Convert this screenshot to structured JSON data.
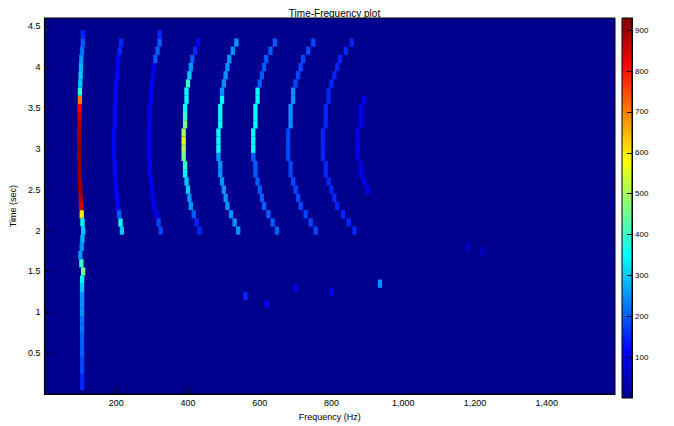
{
  "chart_data": {
    "type": "spectrogram",
    "title": "Time-Frequency plot",
    "x_label": "Frequency (Hz)",
    "y_label": "Time (sec)",
    "xlim": [
      0,
      1590
    ],
    "xticks": [
      200,
      400,
      600,
      800,
      1000,
      1200,
      1400
    ],
    "ylim": [
      0,
      4.6
    ],
    "yticks": [
      0.5,
      1,
      1.5,
      2,
      2.5,
      3,
      3.5,
      4,
      4.5
    ],
    "grid": false,
    "cell_width": 12,
    "cell_height": 0.1,
    "color_range": [
      0,
      930
    ],
    "color_ticks": [
      100,
      200,
      300,
      400,
      500,
      600,
      700,
      800,
      900
    ],
    "cells": [
      [
        105,
        0.1,
        150
      ],
      [
        105,
        0.2,
        150
      ],
      [
        105,
        0.3,
        180
      ],
      [
        105,
        0.4,
        180
      ],
      [
        105,
        0.5,
        200
      ],
      [
        105,
        0.6,
        200
      ],
      [
        105,
        0.7,
        200
      ],
      [
        105,
        0.8,
        220
      ],
      [
        105,
        0.9,
        220
      ],
      [
        105,
        1.0,
        250
      ],
      [
        105,
        1.1,
        250
      ],
      [
        105,
        1.2,
        250
      ],
      [
        105,
        1.3,
        300
      ],
      [
        105,
        1.4,
        350
      ],
      [
        108,
        1.5,
        450
      ],
      [
        103,
        1.6,
        400
      ],
      [
        100,
        1.7,
        250
      ],
      [
        104,
        1.8,
        250
      ],
      [
        106,
        1.9,
        280
      ],
      [
        108,
        2.0,
        300
      ],
      [
        106,
        2.1,
        350
      ],
      [
        104,
        2.2,
        600
      ],
      [
        102,
        2.3,
        850
      ],
      [
        101,
        2.4,
        880
      ],
      [
        100,
        2.5,
        900
      ],
      [
        99,
        2.6,
        900
      ],
      [
        98,
        2.7,
        910
      ],
      [
        98,
        2.8,
        920
      ],
      [
        97,
        2.9,
        920
      ],
      [
        97,
        3.0,
        920
      ],
      [
        97,
        3.1,
        910
      ],
      [
        97,
        3.2,
        900
      ],
      [
        98,
        3.3,
        880
      ],
      [
        98,
        3.4,
        860
      ],
      [
        98,
        3.5,
        820
      ],
      [
        99,
        3.6,
        700
      ],
      [
        99,
        3.7,
        400
      ],
      [
        100,
        3.8,
        300
      ],
      [
        101,
        3.9,
        300
      ],
      [
        102,
        4.0,
        280
      ],
      [
        103,
        4.1,
        250
      ],
      [
        105,
        4.2,
        220
      ],
      [
        107,
        4.3,
        200
      ],
      [
        107,
        4.4,
        150
      ],
      [
        216,
        2.0,
        300
      ],
      [
        212,
        2.1,
        350
      ],
      [
        208,
        2.2,
        200
      ],
      [
        204,
        2.3,
        120
      ],
      [
        202,
        2.4,
        120
      ],
      [
        200,
        2.5,
        120
      ],
      [
        198,
        2.6,
        120
      ],
      [
        196,
        2.7,
        120
      ],
      [
        196,
        2.8,
        120
      ],
      [
        194,
        2.9,
        120
      ],
      [
        194,
        3.0,
        120
      ],
      [
        194,
        3.1,
        120
      ],
      [
        194,
        3.2,
        120
      ],
      [
        196,
        3.3,
        120
      ],
      [
        196,
        3.4,
        120
      ],
      [
        196,
        3.5,
        120
      ],
      [
        198,
        3.6,
        120
      ],
      [
        198,
        3.7,
        120
      ],
      [
        200,
        3.8,
        120
      ],
      [
        202,
        3.9,
        120
      ],
      [
        204,
        4.0,
        120
      ],
      [
        206,
        4.1,
        120
      ],
      [
        210,
        4.2,
        150
      ],
      [
        214,
        4.3,
        150
      ],
      [
        324,
        2.0,
        180
      ],
      [
        318,
        2.1,
        180
      ],
      [
        312,
        2.2,
        100
      ],
      [
        306,
        2.3,
        100
      ],
      [
        303,
        2.4,
        100
      ],
      [
        300,
        2.5,
        100
      ],
      [
        297,
        2.6,
        100
      ],
      [
        294,
        2.7,
        100
      ],
      [
        294,
        2.8,
        100
      ],
      [
        291,
        2.9,
        100
      ],
      [
        291,
        3.0,
        100
      ],
      [
        291,
        3.1,
        100
      ],
      [
        291,
        3.2,
        100
      ],
      [
        294,
        3.3,
        100
      ],
      [
        294,
        3.4,
        100
      ],
      [
        294,
        3.5,
        100
      ],
      [
        297,
        3.6,
        100
      ],
      [
        297,
        3.7,
        100
      ],
      [
        300,
        3.8,
        100
      ],
      [
        303,
        3.9,
        100
      ],
      [
        306,
        4.0,
        100
      ],
      [
        309,
        4.1,
        200
      ],
      [
        315,
        4.2,
        200
      ],
      [
        321,
        4.3,
        200
      ],
      [
        321,
        4.4,
        150
      ],
      [
        432,
        2.0,
        150
      ],
      [
        424,
        2.1,
        150
      ],
      [
        416,
        2.2,
        200
      ],
      [
        408,
        2.3,
        250
      ],
      [
        404,
        2.4,
        250
      ],
      [
        400,
        2.5,
        300
      ],
      [
        396,
        2.6,
        300
      ],
      [
        392,
        2.7,
        350
      ],
      [
        392,
        2.8,
        400
      ],
      [
        388,
        2.9,
        450
      ],
      [
        388,
        3.0,
        500
      ],
      [
        388,
        3.1,
        550
      ],
      [
        388,
        3.2,
        500
      ],
      [
        392,
        3.3,
        450
      ],
      [
        392,
        3.4,
        400
      ],
      [
        392,
        3.5,
        350
      ],
      [
        396,
        3.6,
        350
      ],
      [
        396,
        3.7,
        350
      ],
      [
        400,
        3.8,
        400
      ],
      [
        404,
        3.9,
        300
      ],
      [
        408,
        4.0,
        250
      ],
      [
        412,
        4.1,
        200
      ],
      [
        420,
        4.2,
        150
      ],
      [
        428,
        4.3,
        120
      ],
      [
        540,
        2.0,
        250
      ],
      [
        530,
        2.1,
        250
      ],
      [
        520,
        2.2,
        250
      ],
      [
        510,
        2.3,
        250
      ],
      [
        505,
        2.4,
        250
      ],
      [
        500,
        2.5,
        250
      ],
      [
        495,
        2.6,
        250
      ],
      [
        490,
        2.7,
        250
      ],
      [
        490,
        2.8,
        250
      ],
      [
        485,
        2.9,
        250
      ],
      [
        485,
        3.0,
        350
      ],
      [
        485,
        3.1,
        350
      ],
      [
        485,
        3.2,
        350
      ],
      [
        490,
        3.3,
        350
      ],
      [
        490,
        3.4,
        350
      ],
      [
        490,
        3.5,
        350
      ],
      [
        495,
        3.6,
        350
      ],
      [
        495,
        3.7,
        250
      ],
      [
        500,
        3.8,
        250
      ],
      [
        505,
        3.9,
        250
      ],
      [
        510,
        4.0,
        250
      ],
      [
        515,
        4.1,
        250
      ],
      [
        525,
        4.2,
        250
      ],
      [
        535,
        4.3,
        250
      ],
      [
        648,
        2.0,
        200
      ],
      [
        636,
        2.1,
        200
      ],
      [
        624,
        2.2,
        200
      ],
      [
        612,
        2.3,
        200
      ],
      [
        606,
        2.4,
        200
      ],
      [
        600,
        2.5,
        200
      ],
      [
        594,
        2.6,
        200
      ],
      [
        588,
        2.7,
        200
      ],
      [
        588,
        2.8,
        200
      ],
      [
        582,
        2.9,
        200
      ],
      [
        582,
        3.0,
        350
      ],
      [
        582,
        3.1,
        350
      ],
      [
        582,
        3.2,
        350
      ],
      [
        588,
        3.3,
        350
      ],
      [
        588,
        3.4,
        350
      ],
      [
        588,
        3.5,
        350
      ],
      [
        594,
        3.6,
        350
      ],
      [
        594,
        3.7,
        350
      ],
      [
        600,
        3.8,
        200
      ],
      [
        606,
        3.9,
        200
      ],
      [
        612,
        4.0,
        200
      ],
      [
        618,
        4.1,
        200
      ],
      [
        630,
        4.2,
        200
      ],
      [
        642,
        4.3,
        200
      ],
      [
        756,
        2.0,
        180
      ],
      [
        742,
        2.1,
        180
      ],
      [
        728,
        2.2,
        180
      ],
      [
        714,
        2.3,
        180
      ],
      [
        707,
        2.4,
        180
      ],
      [
        700,
        2.5,
        180
      ],
      [
        693,
        2.6,
        180
      ],
      [
        686,
        2.7,
        180
      ],
      [
        686,
        2.8,
        180
      ],
      [
        679,
        2.9,
        180
      ],
      [
        679,
        3.0,
        180
      ],
      [
        679,
        3.1,
        180
      ],
      [
        679,
        3.2,
        180
      ],
      [
        686,
        3.3,
        250
      ],
      [
        686,
        3.4,
        250
      ],
      [
        686,
        3.5,
        250
      ],
      [
        693,
        3.6,
        250
      ],
      [
        693,
        3.7,
        250
      ],
      [
        700,
        3.8,
        180
      ],
      [
        707,
        3.9,
        180
      ],
      [
        714,
        4.0,
        180
      ],
      [
        721,
        4.1,
        180
      ],
      [
        735,
        4.2,
        180
      ],
      [
        749,
        4.3,
        180
      ],
      [
        864,
        2.0,
        150
      ],
      [
        848,
        2.1,
        150
      ],
      [
        832,
        2.2,
        150
      ],
      [
        816,
        2.3,
        150
      ],
      [
        808,
        2.4,
        150
      ],
      [
        800,
        2.5,
        150
      ],
      [
        792,
        2.6,
        150
      ],
      [
        784,
        2.7,
        150
      ],
      [
        784,
        2.8,
        150
      ],
      [
        776,
        2.9,
        150
      ],
      [
        776,
        3.0,
        150
      ],
      [
        776,
        3.1,
        150
      ],
      [
        776,
        3.2,
        150
      ],
      [
        784,
        3.3,
        150
      ],
      [
        784,
        3.4,
        150
      ],
      [
        784,
        3.5,
        150
      ],
      [
        792,
        3.6,
        150
      ],
      [
        792,
        3.7,
        150
      ],
      [
        800,
        3.8,
        150
      ],
      [
        808,
        3.9,
        150
      ],
      [
        816,
        4.0,
        150
      ],
      [
        824,
        4.1,
        150
      ],
      [
        840,
        4.2,
        150
      ],
      [
        856,
        4.3,
        150
      ],
      [
        900,
        2.5,
        100
      ],
      [
        891,
        2.6,
        100
      ],
      [
        882,
        2.7,
        100
      ],
      [
        882,
        2.8,
        100
      ],
      [
        873,
        2.9,
        100
      ],
      [
        873,
        3.0,
        100
      ],
      [
        873,
        3.1,
        100
      ],
      [
        873,
        3.2,
        100
      ],
      [
        882,
        3.3,
        100
      ],
      [
        882,
        3.4,
        100
      ],
      [
        882,
        3.5,
        100
      ],
      [
        891,
        3.6,
        100
      ],
      [
        935,
        1.35,
        250
      ],
      [
        560,
        1.2,
        150
      ],
      [
        620,
        1.1,
        120
      ],
      [
        700,
        1.3,
        100
      ],
      [
        800,
        1.25,
        100
      ],
      [
        1180,
        1.8,
        60
      ],
      [
        1220,
        1.75,
        60
      ]
    ]
  }
}
